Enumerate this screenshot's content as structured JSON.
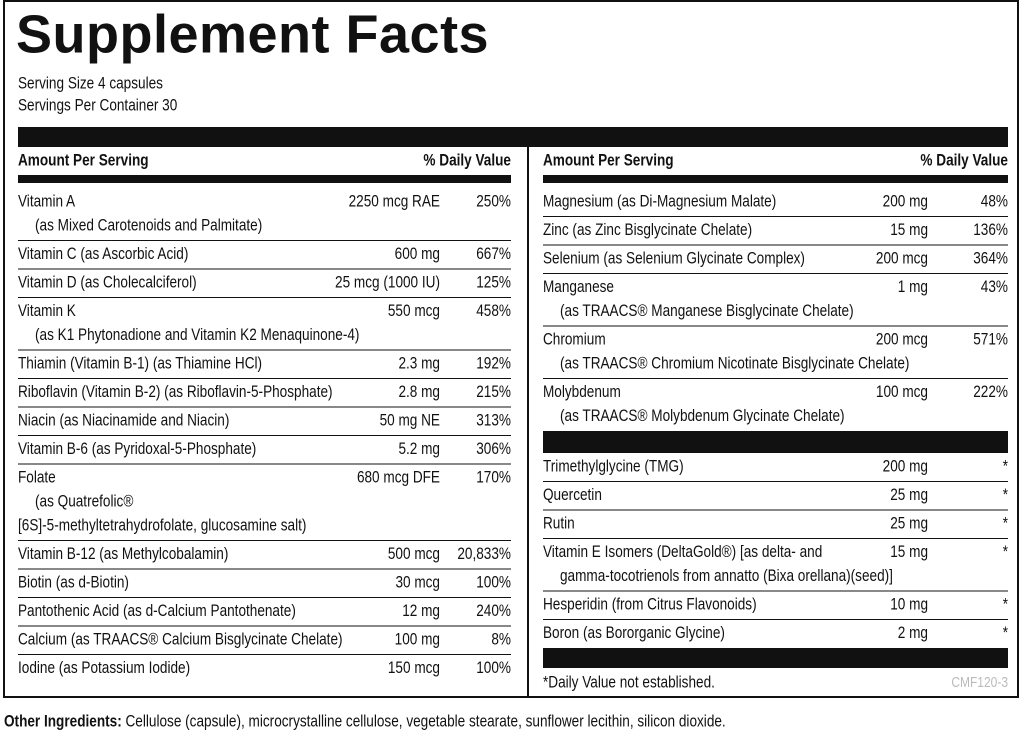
{
  "header": {
    "title": "Supplement Facts",
    "serving_size": "Serving Size 4 capsules",
    "servings_per_container": "Servings Per Container 30"
  },
  "columns": [
    {
      "heading_amount": "Amount Per Serving",
      "heading_dv": "% Daily Value",
      "groups": [
        [
          {
            "name": [
              "Vitamin A",
              "(as Mixed Carotenoids and Palmitate)"
            ],
            "amount": "2250 mcg RAE",
            "dv": "250%"
          },
          {
            "name": [
              "Vitamin C (as Ascorbic Acid)"
            ],
            "amount": "600 mg",
            "dv": "667%"
          },
          {
            "name": [
              "Vitamin D (as Cholecalciferol)"
            ],
            "amount": "25 mcg (1000 IU)",
            "dv": "125%"
          },
          {
            "name": [
              "Vitamin K",
              "(as K1 Phytonadione and Vitamin K2 Menaquinone-4)"
            ],
            "amount": "550 mcg",
            "dv": "458%"
          },
          {
            "name": [
              "Thiamin (Vitamin B-1) (as Thiamine HCl)"
            ],
            "amount": "2.3 mg",
            "dv": "192%"
          },
          {
            "name": [
              "Riboflavin (Vitamin B-2) (as Riboflavin-5-Phosphate)"
            ],
            "amount": "2.8 mg",
            "dv": "215%"
          },
          {
            "name": [
              "Niacin (as Niacinamide and Niacin)"
            ],
            "amount": "50 mg NE",
            "dv": "313%"
          },
          {
            "name": [
              "Vitamin B-6 (as Pyridoxal-5-Phosphate)"
            ],
            "amount": "5.2 mg",
            "dv": "306%"
          },
          {
            "name": [
              "Folate",
              "(as Quatrefolic®",
              "[6S]-5-methyltetrahydrofolate, glucosamine salt)"
            ],
            "amount": "680 mcg DFE",
            "dv": "170%"
          },
          {
            "name": [
              "Vitamin B-12 (as Methylcobalamin)"
            ],
            "amount": "500 mcg",
            "dv": "20,833%"
          },
          {
            "name": [
              "Biotin (as d-Biotin)"
            ],
            "amount": "30 mcg",
            "dv": "100%"
          },
          {
            "name": [
              "Pantothenic Acid (as d-Calcium Pantothenate)"
            ],
            "amount": "12 mg",
            "dv": "240%"
          },
          {
            "name": [
              "Calcium (as TRAACS® Calcium Bisglycinate Chelate)"
            ],
            "amount": "100 mg",
            "dv": "8%"
          },
          {
            "name": [
              "Iodine (as Potassium Iodide)"
            ],
            "amount": "150 mcg",
            "dv": "100%"
          }
        ]
      ]
    },
    {
      "heading_amount": "Amount Per Serving",
      "heading_dv": "% Daily Value",
      "groups": [
        [
          {
            "name": [
              "Magnesium (as Di-Magnesium Malate)"
            ],
            "amount": "200 mg",
            "dv": "48%"
          },
          {
            "name": [
              "Zinc (as Zinc Bisglycinate Chelate)"
            ],
            "amount": "15 mg",
            "dv": "136%"
          },
          {
            "name": [
              "Selenium (as Selenium Glycinate Complex)"
            ],
            "amount": "200 mcg",
            "dv": "364%"
          },
          {
            "name": [
              "Manganese",
              "(as TRAACS® Manganese Bisglycinate Chelate)"
            ],
            "amount": "1 mg",
            "dv": "43%"
          },
          {
            "name": [
              "Chromium",
              "(as TRAACS® Chromium Nicotinate Bisglycinate Chelate)"
            ],
            "amount": "200 mcg",
            "dv": "571%"
          },
          {
            "name": [
              "Molybdenum",
              "(as TRAACS® Molybdenum Glycinate Chelate)"
            ],
            "amount": "100 mcg",
            "dv": "222%"
          }
        ],
        [
          {
            "name": [
              "Trimethylglycine (TMG)"
            ],
            "amount": "200 mg",
            "dv": "*"
          },
          {
            "name": [
              "Quercetin"
            ],
            "amount": "25 mg",
            "dv": "*"
          },
          {
            "name": [
              "Rutin"
            ],
            "amount": "25 mg",
            "dv": "*"
          },
          {
            "name": [
              "Vitamin E Isomers (DeltaGold®)  [as delta- and",
              "gamma-tocotrienols from annatto (Bixa orellana)(seed)]"
            ],
            "amount": "15 mg",
            "dv": "*"
          },
          {
            "name": [
              "Hesperidin (from Citrus Flavonoids)"
            ],
            "amount": "10 mg",
            "dv": "*"
          },
          {
            "name": [
              "Boron (as Bororganic Glycine)"
            ],
            "amount": "2 mg",
            "dv": "*"
          }
        ]
      ]
    }
  ],
  "footnote": "*Daily Value not established.",
  "code": "CMF120-3",
  "other_ingredients": {
    "label": "Other Ingredients:",
    "text": " Cellulose (capsule), microcrystalline cellulose, vegetable stearate, sunflower lecithin, silicon dioxide."
  }
}
